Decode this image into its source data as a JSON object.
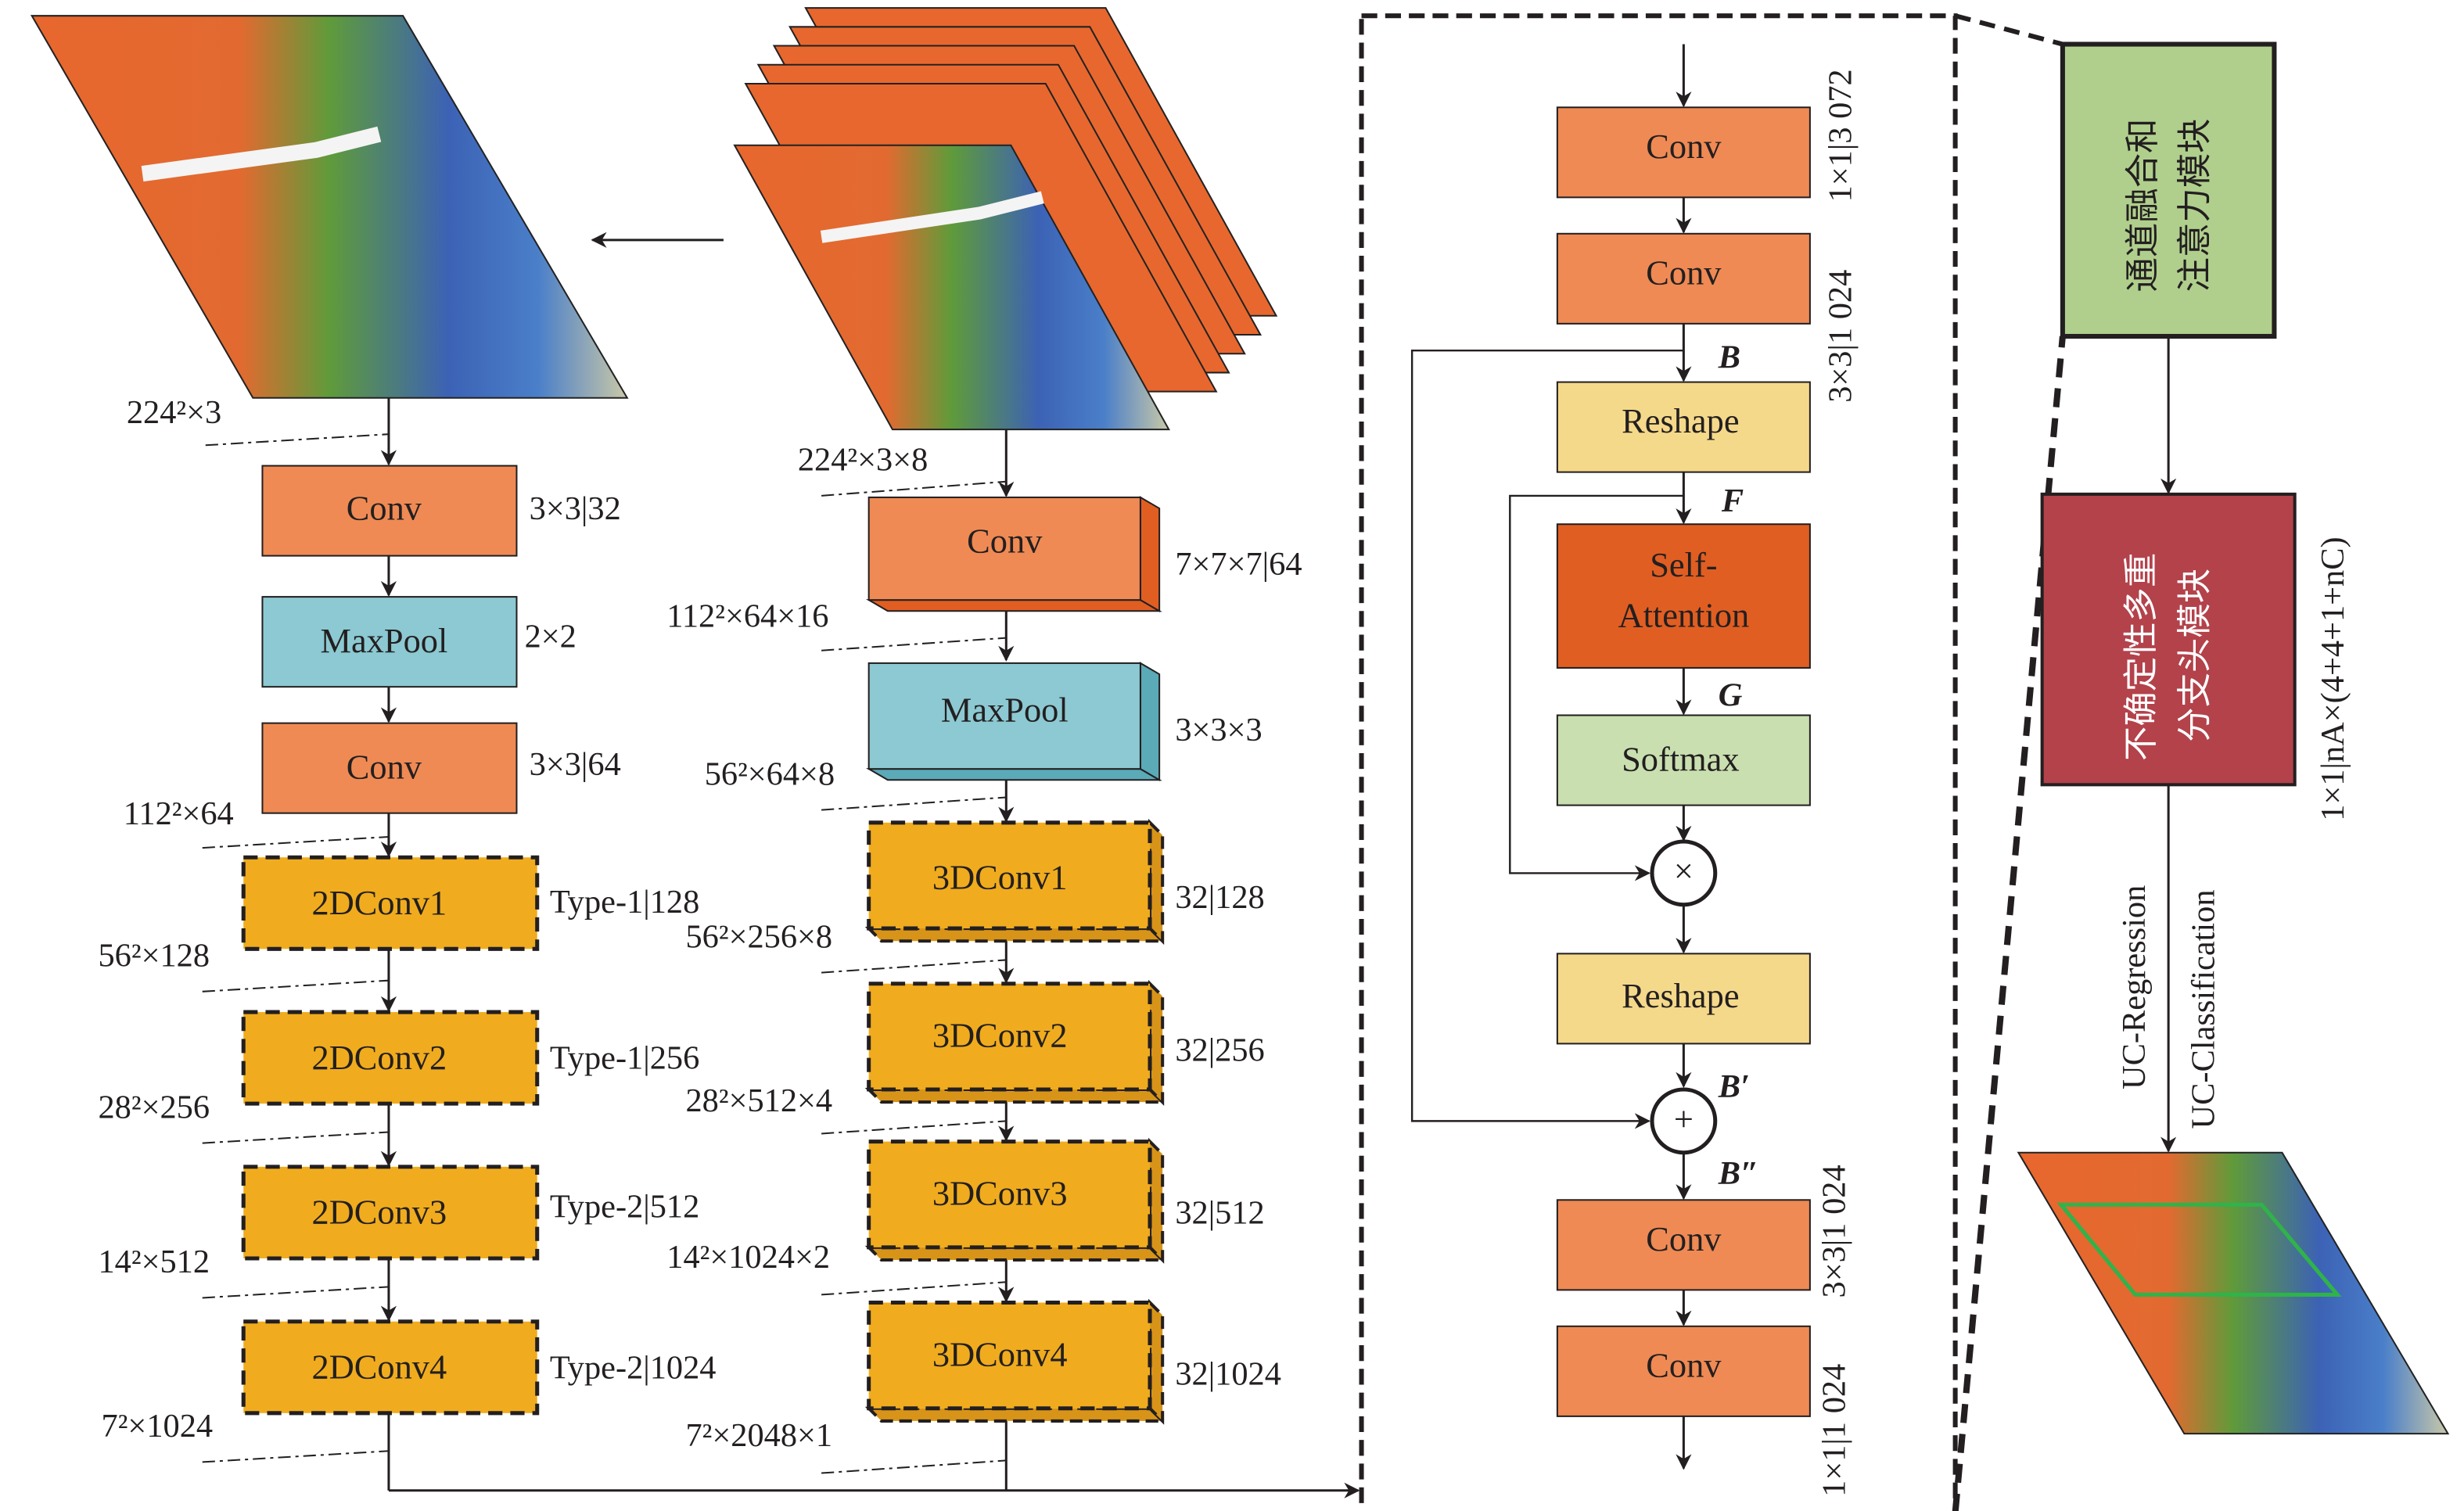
{
  "colors": {
    "conv": "#ef8a54",
    "maxpool": "#8cc9d2",
    "dconv": "#f0ac1e",
    "reshape": "#f5d98a",
    "attention": "#e05e22",
    "softmax": "#c9dfb0",
    "fusion": "#b0cf8d",
    "head": "#b3424b"
  },
  "left": {
    "input_dim": "224²×3",
    "blocks": [
      {
        "label": "Conv",
        "param": "3×3|32"
      },
      {
        "label": "MaxPool",
        "param": "2×2"
      },
      {
        "label": "Conv",
        "param": "3×3|64"
      },
      {
        "label": "2DConv1",
        "param": "Type-1|128"
      },
      {
        "label": "2DConv2",
        "param": "Type-1|256"
      },
      {
        "label": "2DConv3",
        "param": "Type-2|512"
      },
      {
        "label": "2DConv4",
        "param": "Type-2|1024"
      }
    ],
    "dims": [
      "112²×64",
      "56²×128",
      "28²×256",
      "14²×512",
      "7²×1024"
    ]
  },
  "middle": {
    "input_dim": "224²×3×8",
    "blocks": [
      {
        "label": "Conv",
        "param": "7×7×7|64"
      },
      {
        "label": "MaxPool",
        "param": "3×3×3"
      },
      {
        "label": "3DConv1",
        "param": "32|128"
      },
      {
        "label": "3DConv2",
        "param": "32|256"
      },
      {
        "label": "3DConv3",
        "param": "32|512"
      },
      {
        "label": "3DConv4",
        "param": "32|1024"
      }
    ],
    "dims": [
      "112²×64×16",
      "56²×64×8",
      "56²×256×8",
      "28²×512×4",
      "14²×1024×2",
      "7²×2048×1"
    ]
  },
  "attention": {
    "blocks": [
      "Conv",
      "Conv",
      "Reshape",
      "Self-",
      "Attention",
      "Softmax",
      "Reshape",
      "Conv",
      "Conv"
    ],
    "params": [
      "1×1|3 072",
      "3×3|1 024",
      "3×3|1 024",
      "1×1|1 024"
    ],
    "symbols": {
      "B": "B",
      "F": "F",
      "G": "G",
      "B1": "B′",
      "B2": "B″",
      "mul": "×",
      "add": "+"
    }
  },
  "right": {
    "fusion_line1": "通道融合和",
    "fusion_line2": "注意力模块",
    "head_line1": "不确定性多重",
    "head_line2": "分支头模块",
    "head_param": "1×1|nA×(4+4+1+nC)",
    "out_regression": "UC-Regression",
    "out_classification": "UC-Classification"
  }
}
